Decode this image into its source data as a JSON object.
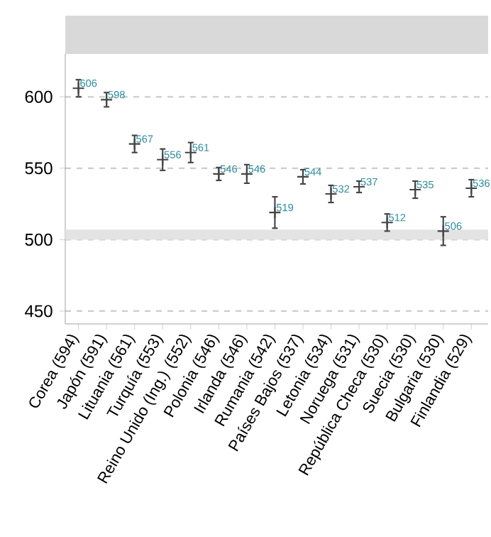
{
  "chart_data": {
    "type": "scatter",
    "categories": [
      "Corea (594)",
      "Japón (591)",
      "Lituania (561)",
      "Turquía (553)",
      "Reino Unido (Ing.) (552)",
      "Polonia (546)",
      "Irlanda (546)",
      "Rumania (542)",
      "Países Bajos (537)",
      "Letonia (534)",
      "Noruega (531)",
      "República Checa (530)",
      "Suecia (530)",
      "Bulgaria (530)",
      "Finlandia (529)"
    ],
    "values": [
      606,
      598,
      567,
      556,
      561,
      546,
      546,
      519,
      544,
      532,
      537,
      512,
      535,
      506,
      536
    ],
    "errors": [
      6,
      5,
      6,
      7.5,
      7,
      4.5,
      6.5,
      11,
      5,
      6,
      4,
      6,
      6,
      10,
      6
    ],
    "color": "#444444",
    "ylim": [
      441,
      630
    ],
    "yticks": [
      450,
      500,
      550,
      600
    ],
    "bands": [
      {
        "axis": "y",
        "from": 500,
        "to": 507,
        "color": "#e3e3e3"
      }
    ],
    "grid": "y",
    "marker": "cross",
    "data_labels": true
  }
}
